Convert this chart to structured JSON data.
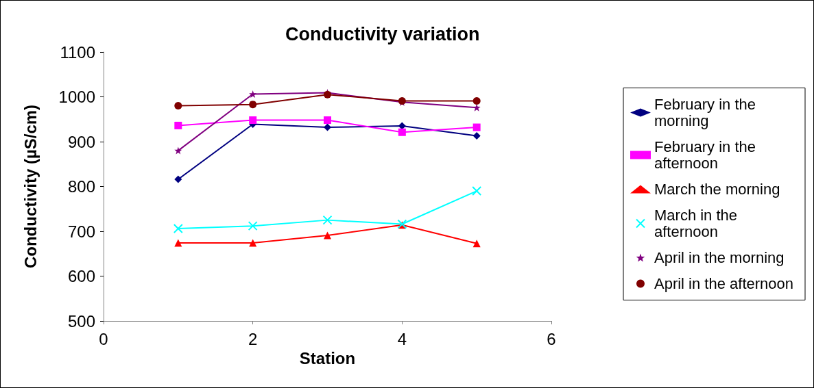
{
  "chart_data": {
    "type": "line",
    "title": "Conductivity variation",
    "xlabel": "Station",
    "ylabel": "Conductivity (µS/cm)",
    "x": [
      1,
      2,
      3,
      4,
      5
    ],
    "xlim": [
      0,
      6
    ],
    "xticks": [
      0,
      2,
      4,
      6
    ],
    "ylim": [
      500,
      1100
    ],
    "yticks": [
      500,
      600,
      700,
      800,
      900,
      1000,
      1100
    ],
    "grid": false,
    "legend": "right",
    "line_style": "solid",
    "series": [
      {
        "name": "February in the morning",
        "color": "#000080",
        "marker": "diamond",
        "values": [
          816,
          939,
          932,
          935,
          913
        ]
      },
      {
        "name": "February in the afternoon",
        "color": "#ff00ff",
        "marker": "square",
        "values": [
          936,
          948,
          948,
          921,
          932
        ]
      },
      {
        "name": "March the morning",
        "color": "#ff0000",
        "marker": "triangle",
        "values": [
          674,
          674,
          691,
          714,
          673
        ]
      },
      {
        "name": "March in the afternoon",
        "color": "#00ffff",
        "marker": "cross",
        "values": [
          706,
          712,
          725,
          716,
          790
        ]
      },
      {
        "name": "April in the morning",
        "color": "#800080",
        "marker": "star",
        "values": [
          880,
          1006,
          1009,
          988,
          976
        ]
      },
      {
        "name": "April in the afternoon",
        "color": "#800000",
        "marker": "circle",
        "values": [
          980,
          983,
          1005,
          991,
          991
        ]
      }
    ]
  }
}
